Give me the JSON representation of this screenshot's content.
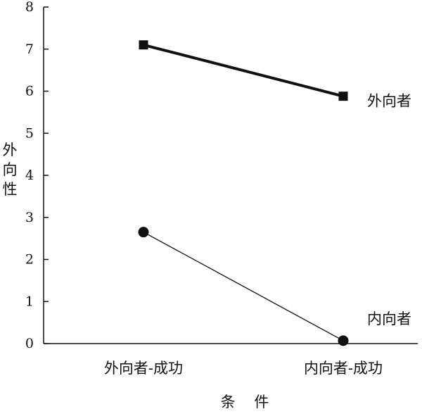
{
  "chart_data": {
    "type": "line",
    "categories": [
      "外向者-成功",
      "内向者-成功"
    ],
    "series": [
      {
        "name": "外向者",
        "values": [
          7.1,
          5.88
        ],
        "marker": "square",
        "line_weight": "thick"
      },
      {
        "name": "内向者",
        "values": [
          2.65,
          0.07
        ],
        "marker": "circle",
        "line_weight": "thin"
      }
    ],
    "xlabel": "条 件",
    "ylabel": "外向性",
    "ylim": [
      0,
      8
    ],
    "yticks": [
      "0",
      "1",
      "2",
      "3",
      "4",
      "5",
      "6",
      "7",
      "8"
    ],
    "grid": false,
    "legend": "series labels at right end of lines",
    "colors": {
      "line": "#111111",
      "marker": "#111111",
      "axis": "#111111",
      "background": "#ffffff"
    }
  }
}
